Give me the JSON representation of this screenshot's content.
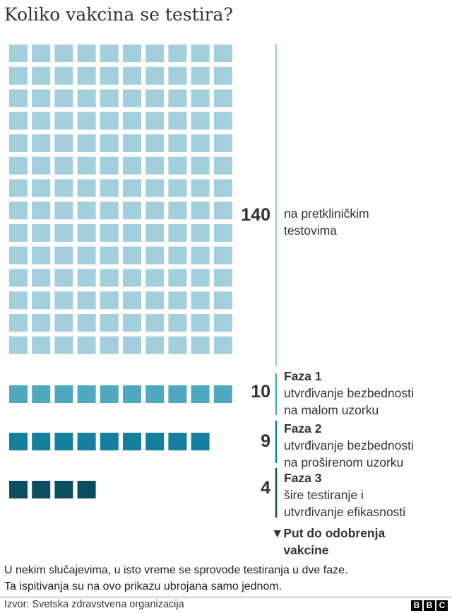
{
  "chart_data": {
    "type": "waffle",
    "title": "Koliko vakcina se testira?",
    "groups": [
      {
        "value": 140,
        "heading": "",
        "lines": [
          "na pretkliničkim",
          "testovima"
        ],
        "color": "#a3cfdc"
      },
      {
        "value": 10,
        "heading": "Faza 1",
        "lines": [
          "utvrđivanje bezbednosti",
          "na malom uzorku"
        ],
        "color": "#4fa9bf"
      },
      {
        "value": 9,
        "heading": "Faza 2",
        "lines": [
          "utvrđivanje bezbednosti",
          "na proširenom uzorku"
        ],
        "color": "#157f9e"
      },
      {
        "value": 4,
        "heading": "Faza 3",
        "lines": [
          "šire testiranje i",
          "utvrđivanje efikasnosti"
        ],
        "color": "#0c4d5f"
      }
    ],
    "squares_per_row": 10,
    "annotation": "Put do odobrenja vakcine"
  },
  "arrow_icon": "triangle-down-icon",
  "note": [
    "U nekim slučajevima, u isto vreme se sprovode testiranja u dve faze.",
    "Ta ispitivanja su na ovo prikazu ubrojana samo jednom."
  ],
  "source": "Izvor: Svetska zdravstvena organizacija",
  "logo": "BBC"
}
